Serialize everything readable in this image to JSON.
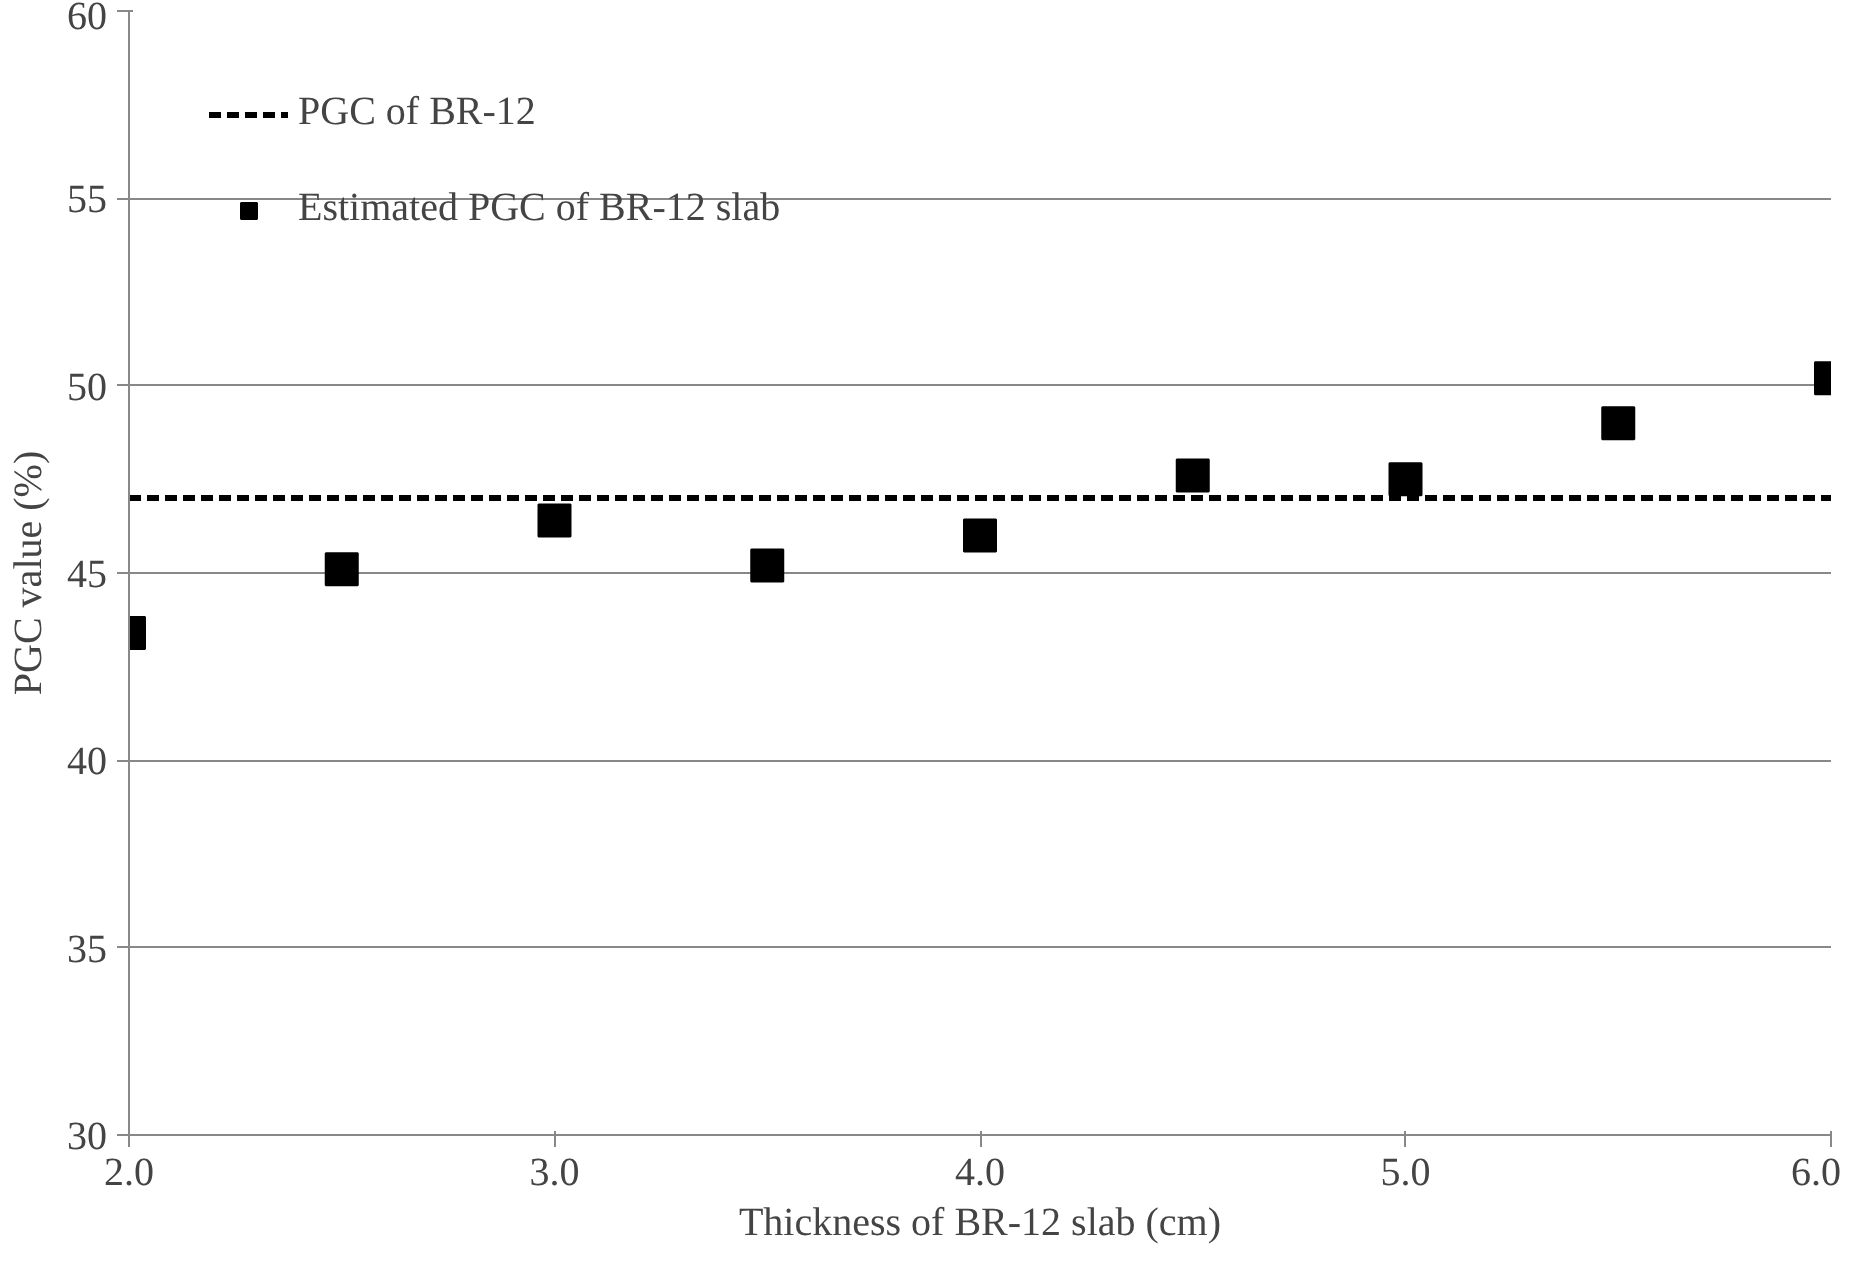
{
  "chart_data": {
    "type": "scatter",
    "xlabel": "Thickness of BR-12 slab (cm)",
    "ylabel": "PGC value (%)",
    "xlim": [
      2.0,
      6.0
    ],
    "xticks": [
      {
        "value": 2,
        "label": "2.0"
      },
      {
        "value": 3,
        "label": "3.0"
      },
      {
        "value": 4,
        "label": "4.0"
      },
      {
        "value": 5,
        "label": "5.0"
      },
      {
        "value": 6,
        "label": "6.0"
      }
    ],
    "ylim": [
      30,
      60
    ],
    "yticks": [
      30,
      35,
      40,
      45,
      50,
      55,
      60
    ],
    "grid": "y",
    "legend": "top left",
    "series": [
      {
        "name": "PGC of BR-12",
        "type": "line",
        "line_style": "dashed",
        "marker": "none",
        "color": "#000000",
        "x": [
          2.0,
          6.0
        ],
        "values": [
          47.0,
          47.0
        ]
      },
      {
        "name": "Estimated PGC of BR-12 slab",
        "marker": "square",
        "color": "#000000",
        "x": [
          2.0,
          2.5,
          3.0,
          3.5,
          4.0,
          4.5,
          5.0,
          5.5,
          6.0
        ],
        "values": [
          43.4,
          45.1,
          46.4,
          45.2,
          46.0,
          47.6,
          47.5,
          49.0,
          50.2
        ]
      }
    ]
  }
}
